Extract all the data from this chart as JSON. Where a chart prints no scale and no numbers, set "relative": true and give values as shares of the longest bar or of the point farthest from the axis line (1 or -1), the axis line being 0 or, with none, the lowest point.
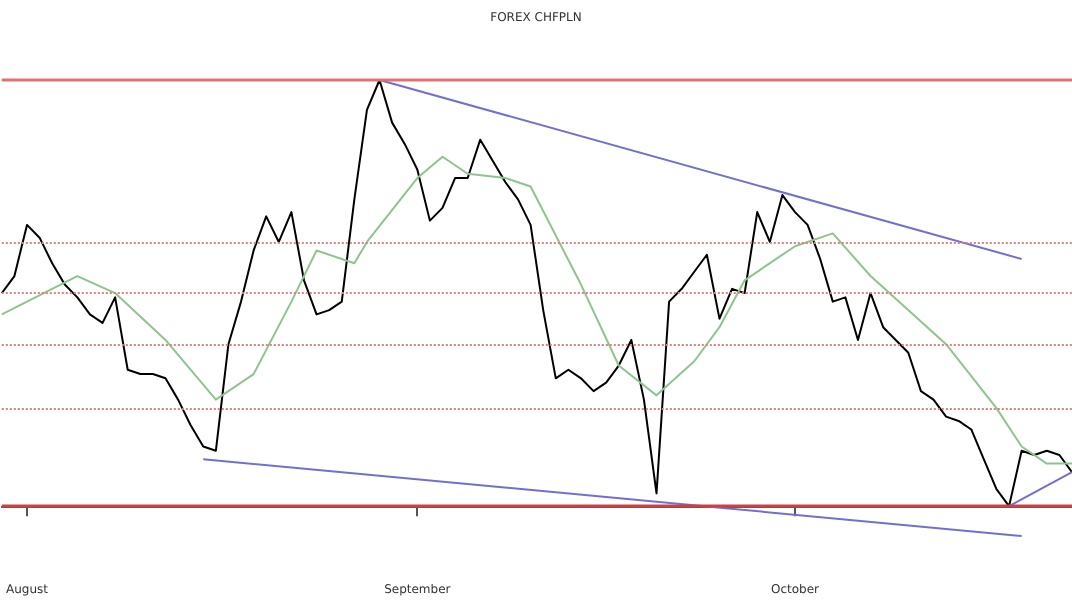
{
  "chart_data": {
    "type": "line",
    "title": "FOREX CHFPLN",
    "relative": true,
    "xlim": [
      "--07-30",
      "--10-23"
    ],
    "xticks": [
      {
        "value": "--08-01",
        "label": "August"
      },
      {
        "value": "--09-01",
        "label": "September"
      },
      {
        "value": "--10-01",
        "label": "October"
      }
    ],
    "series": [
      {
        "color": "#000000",
        "x": [
          "--07-30",
          "--07-31",
          "--08-01",
          "--08-02",
          "--08-03",
          "--08-04",
          "--08-05",
          "--08-06",
          "--08-07",
          "--08-08",
          "--08-09",
          "--08-10",
          "--08-11",
          "--08-12",
          "--08-13",
          "--08-14",
          "--08-15",
          "--08-16",
          "--08-17",
          "--08-18",
          "--08-19",
          "--08-20",
          "--08-21",
          "--08-22",
          "--08-23",
          "--08-24",
          "--08-25",
          "--08-26",
          "--08-27",
          "--08-28",
          "--08-29",
          "--08-30",
          "--08-31",
          "--09-01",
          "--09-02",
          "--09-03",
          "--09-04",
          "--09-05",
          "--09-06",
          "--09-07",
          "--09-08",
          "--09-09",
          "--09-10",
          "--09-11",
          "--09-12",
          "--09-13",
          "--09-14",
          "--09-15",
          "--09-16",
          "--09-17",
          "--09-18",
          "--09-19",
          "--09-20",
          "--09-21",
          "--09-22",
          "--09-23",
          "--09-24",
          "--09-25",
          "--09-26",
          "--09-27",
          "--09-28",
          "--09-29",
          "--09-30",
          "--10-01",
          "--10-02",
          "--10-03",
          "--10-04",
          "--10-05",
          "--10-06",
          "--10-07",
          "--10-08",
          "--10-09",
          "--10-10",
          "--10-11",
          "--10-12",
          "--10-13",
          "--10-14",
          "--10-15",
          "--10-16",
          "--10-17",
          "--10-18",
          "--10-19",
          "--10-20",
          "--10-21",
          "--10-22",
          "--10-23"
        ],
        "values": [
          0.5,
          0.54,
          0.66,
          0.63,
          0.57,
          0.52,
          0.49,
          0.45,
          0.43,
          0.49,
          0.32,
          0.31,
          0.31,
          0.3,
          0.25,
          0.19,
          0.14,
          0.13,
          0.38,
          0.48,
          0.6,
          0.68,
          0.62,
          0.69,
          0.53,
          0.45,
          0.46,
          0.48,
          0.72,
          0.93,
          1.0,
          0.9,
          0.85,
          0.79,
          0.67,
          0.7,
          0.77,
          0.77,
          0.86,
          0.81,
          0.76,
          0.72,
          0.66,
          0.46,
          0.3,
          0.32,
          0.3,
          0.27,
          0.29,
          0.33,
          0.39,
          0.25,
          0.03,
          0.48,
          0.51,
          0.55,
          0.59,
          0.44,
          0.51,
          0.5,
          0.69,
          0.62,
          0.73,
          0.69,
          0.66,
          0.58,
          0.48,
          0.49,
          0.39,
          0.5,
          0.42,
          0.39,
          0.36,
          0.27,
          0.25,
          0.21,
          0.2,
          0.18,
          0.11,
          0.04,
          0,
          0.13,
          0.12,
          0.13,
          0.12,
          0.08
        ]
      },
      {
        "color": "#8fc48f",
        "x": [
          "--07-30",
          "--08-05",
          "--08-08",
          "--08-12",
          "--08-16",
          "--08-19",
          "--08-22",
          "--08-24",
          "--08-27",
          "--08-28",
          "--09-01",
          "--09-03",
          "--09-05",
          "--09-08",
          "--09-10",
          "--09-14",
          "--09-17",
          "--09-20",
          "--09-23",
          "--09-25",
          "--09-27",
          "--10-01",
          "--10-04",
          "--10-07",
          "--10-13",
          "--10-17",
          "--10-19",
          "--10-21",
          "--10-23"
        ],
        "values": [
          0.45,
          0.54,
          0.5,
          0.39,
          0.25,
          0.31,
          0.48,
          0.6,
          0.57,
          0.62,
          0.77,
          0.82,
          0.78,
          0.77,
          0.75,
          0.52,
          0.33,
          0.26,
          0.34,
          0.42,
          0.53,
          0.61,
          0.64,
          0.54,
          0.38,
          0.23,
          0.14,
          0.1,
          0.1
        ]
      },
      {
        "color": "#7070d0",
        "x": [
          "--08-29",
          "--10-19"
        ],
        "values": [
          1.0,
          0.58
        ]
      },
      {
        "color": "#7070d0",
        "x": [
          "--08-15",
          "--10-19"
        ],
        "values": [
          0.11,
          -0.07
        ]
      },
      {
        "color": "#7070d0",
        "x": [
          "--10-18",
          "--10-23"
        ],
        "values": [
          0,
          0.08
        ]
      }
    ],
    "ref_lines": [
      {
        "axis": "y",
        "value": 1.0,
        "color": "#e07070",
        "line_style": "solid"
      },
      {
        "axis": "y",
        "value": 0,
        "color": "#d04040",
        "line_style": "solid"
      },
      {
        "axis": "y",
        "value": 0.62,
        "color": "#e08080",
        "line_style": "dotted"
      },
      {
        "axis": "y",
        "value": 0.5,
        "color": "#e08080",
        "line_style": "dotted"
      },
      {
        "axis": "y",
        "value": 0.38,
        "color": "#e08080",
        "line_style": "dotted"
      },
      {
        "axis": "y",
        "value": 0.23,
        "color": "#e08080",
        "line_style": "dotted"
      }
    ]
  }
}
